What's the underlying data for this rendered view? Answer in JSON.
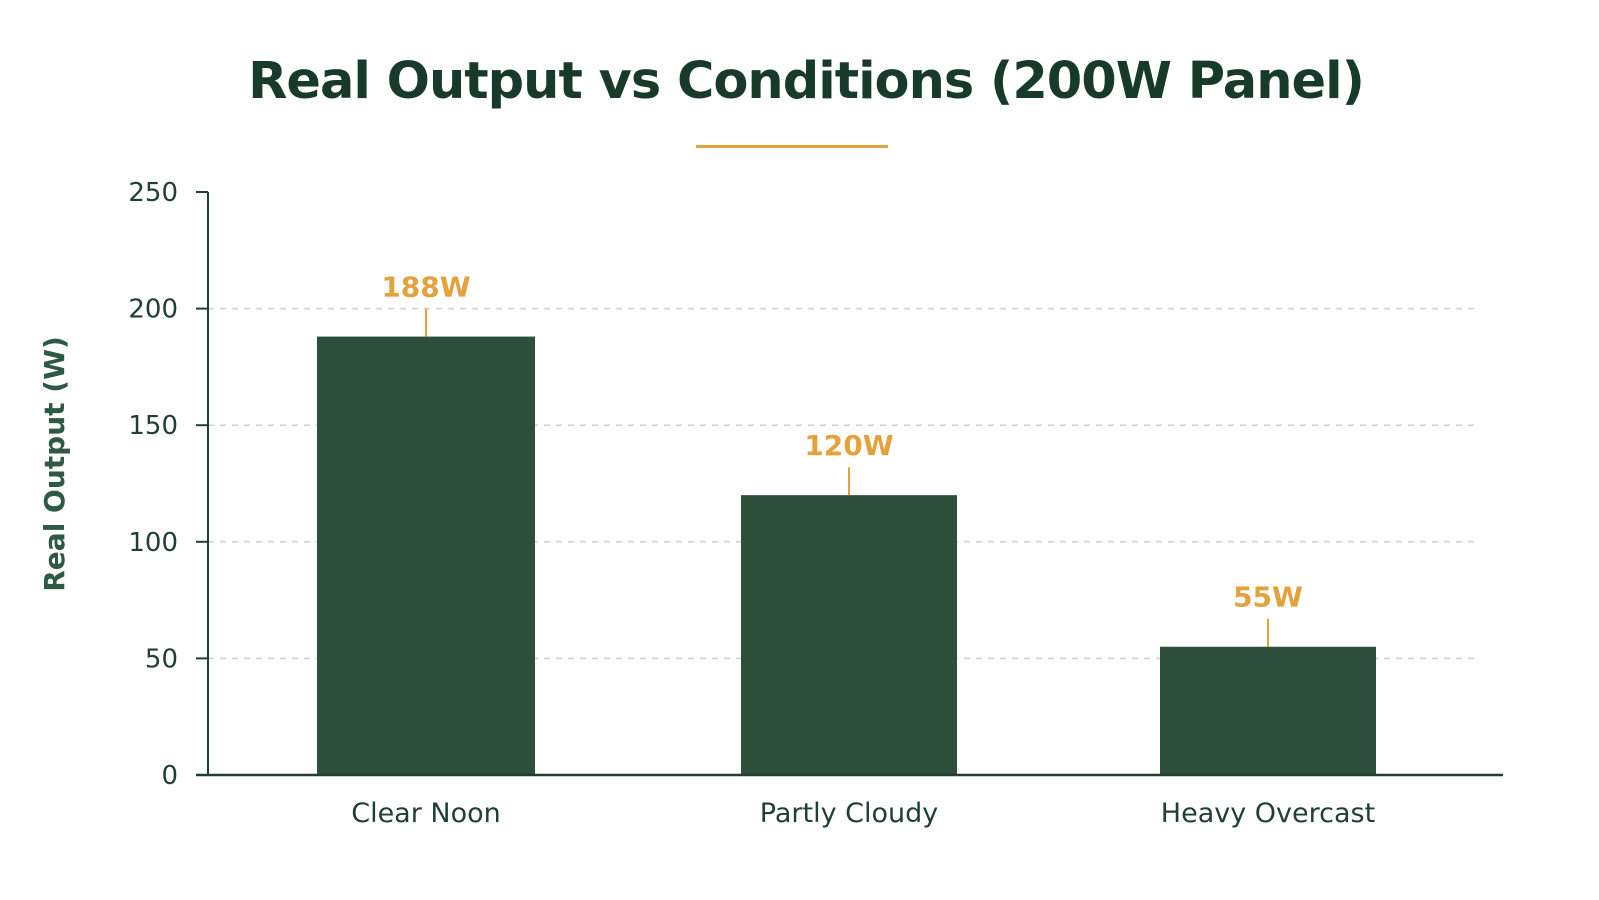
{
  "chart_data": {
    "type": "bar",
    "title": "Real Output vs Conditions (200W Panel)",
    "xlabel": "",
    "ylabel": "Real Output (W)",
    "categories": [
      "Clear Noon",
      "Partly Cloudy",
      "Heavy Overcast"
    ],
    "values": [
      188,
      120,
      55
    ],
    "data_labels": [
      "188W",
      "120W",
      "55W"
    ],
    "ylim": [
      0,
      250
    ],
    "yticks": [
      0,
      50,
      100,
      150,
      200,
      250
    ],
    "grid": "horizontal dashed",
    "legend": "none"
  },
  "colors": {
    "bar": "#2d4f3c",
    "accent": "#e3a23c",
    "axis": "#1f3f31",
    "text": "#173a2a",
    "grid": "#cfcfcf"
  }
}
